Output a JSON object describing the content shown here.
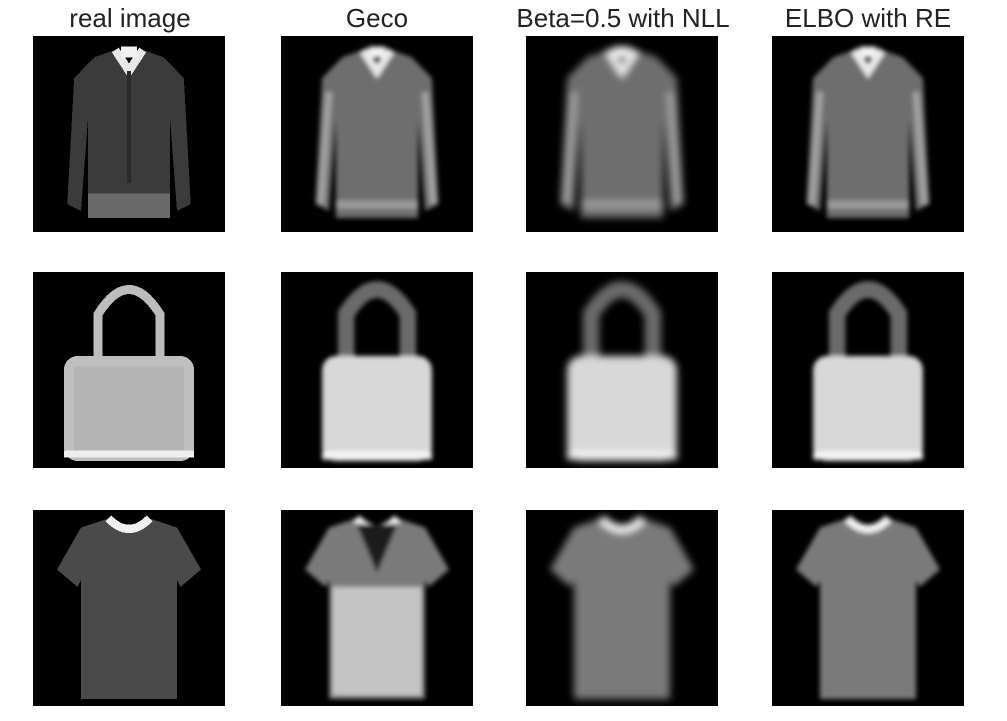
{
  "figure": {
    "columns": [
      {
        "title": "real image",
        "style": "sharp"
      },
      {
        "title": "Geco",
        "style": "smooth"
      },
      {
        "title": "Beta=0.5 with NLL",
        "style": "blurry"
      },
      {
        "title": "ELBO with RE",
        "style": "smooth-dots"
      }
    ],
    "rows": [
      {
        "item": "long-sleeve-shirt"
      },
      {
        "item": "handbag"
      },
      {
        "item": "t-shirt"
      }
    ],
    "colors": {
      "background": "#000000",
      "page": "#ffffff"
    }
  }
}
